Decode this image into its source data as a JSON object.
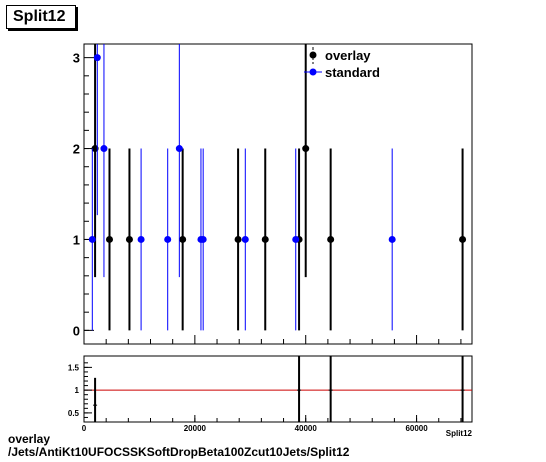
{
  "title": "Split12",
  "caption_line1": "overlay",
  "caption_line2": "/Jets/AntiKt10UFOCSSKSoftDropBeta100Zcut10Jets/Split12",
  "colors": {
    "overlay": "#000000",
    "standard": "#0000ff",
    "ratio_line": "#cc0000"
  },
  "chart_data": [
    {
      "type": "scatter",
      "title": "",
      "xlim": [
        0,
        70000
      ],
      "ylim": [
        -0.15,
        3.15
      ],
      "yticks": [
        0,
        1,
        2,
        3
      ],
      "legend": {
        "position": "top-right",
        "entries": [
          "overlay",
          "standard"
        ]
      },
      "series": [
        {
          "name": "overlay",
          "color": "#000000",
          "points": [
            {
              "x": 2000,
              "y": 2
            },
            {
              "x": 4600,
              "y": 1
            },
            {
              "x": 8200,
              "y": 1
            },
            {
              "x": 17800,
              "y": 1
            },
            {
              "x": 27800,
              "y": 1
            },
            {
              "x": 32700,
              "y": 1
            },
            {
              "x": 38800,
              "y": 1
            },
            {
              "x": 40000,
              "y": 2
            },
            {
              "x": 44500,
              "y": 1
            },
            {
              "x": 68300,
              "y": 1
            }
          ]
        },
        {
          "name": "standard",
          "color": "#0000ff",
          "points": [
            {
              "x": 1500,
              "y": 1
            },
            {
              "x": 2400,
              "y": 3
            },
            {
              "x": 3600,
              "y": 2
            },
            {
              "x": 10300,
              "y": 1
            },
            {
              "x": 15100,
              "y": 1
            },
            {
              "x": 17200,
              "y": 2
            },
            {
              "x": 21100,
              "y": 1
            },
            {
              "x": 21500,
              "y": 1
            },
            {
              "x": 29100,
              "y": 1
            },
            {
              "x": 38200,
              "y": 1
            },
            {
              "x": 55600,
              "y": 1
            }
          ]
        }
      ]
    },
    {
      "type": "scatter",
      "title": "",
      "xlabel": "Split12",
      "xlim": [
        0,
        70000
      ],
      "ylim": [
        0.3,
        1.75
      ],
      "yticks": [
        0.5,
        1,
        1.5
      ],
      "ytick_labels": [
        "0.5",
        "1",
        "1.5"
      ],
      "xticks": [
        0,
        20000,
        40000,
        60000
      ],
      "xtick_labels": [
        "0",
        "20000",
        "40000",
        "60000"
      ],
      "reference_line": 1,
      "points": [
        {
          "x": 2000,
          "y": 0.67,
          "err": 0.6
        },
        {
          "x": 38800,
          "y": 1,
          "err": 1.0
        },
        {
          "x": 44500,
          "y": 1,
          "err": 1.0
        },
        {
          "x": 68300,
          "y": 1,
          "err": 1.0
        }
      ]
    }
  ]
}
